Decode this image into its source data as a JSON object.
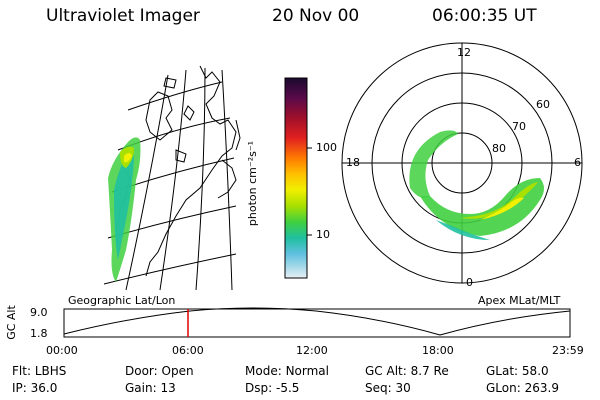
{
  "header": {
    "instrument": "Ultraviolet Imager",
    "date": "20 Nov 00",
    "time": "06:00:35 UT"
  },
  "colorbar": {
    "unit_label": "photon cm⁻²s⁻¹",
    "ticks": [
      "100",
      "10"
    ],
    "colors": [
      "#1a0a2e",
      "#5a0a4a",
      "#a0102a",
      "#e02020",
      "#ff7a00",
      "#ffc000",
      "#f0f000",
      "#a8e000",
      "#40d040",
      "#20c0a0",
      "#60c0e0",
      "#a0d8e8",
      "#e8f0f4"
    ]
  },
  "polar_plot": {
    "mlt_labels": {
      "top": "12",
      "left": "18",
      "right": "6",
      "bottom": "0"
    },
    "lat_labels": [
      "60",
      "70",
      "80"
    ],
    "coord_label": "Apex MLat/MLT"
  },
  "geo_plot": {
    "coord_label": "Geographic Lat/Lon"
  },
  "altitude_chart": {
    "ylabel": "GC Alt",
    "yticks": [
      "9.0",
      "1.8"
    ],
    "xticks": [
      "00:00",
      "06:00",
      "12:00",
      "18:00",
      "23:59"
    ],
    "marker_color": "#e00000"
  },
  "info": {
    "rows": [
      [
        {
          "label": "Flt:",
          "value": "LBHS"
        },
        {
          "label": "Door:",
          "value": "Open"
        },
        {
          "label": "Mode:",
          "value": "Normal"
        },
        {
          "label": "GC Alt:",
          "value": "8.7 Re"
        },
        {
          "label": "GLat:",
          "value": "58.0"
        }
      ],
      [
        {
          "label": "IP:",
          "value": "36.0"
        },
        {
          "label": "Gain:",
          "value": "13"
        },
        {
          "label": "Dsp:",
          "value": "-5.5"
        },
        {
          "label": "Seq:",
          "value": "30"
        },
        {
          "label": "GLon:",
          "value": "263.9"
        }
      ]
    ]
  }
}
